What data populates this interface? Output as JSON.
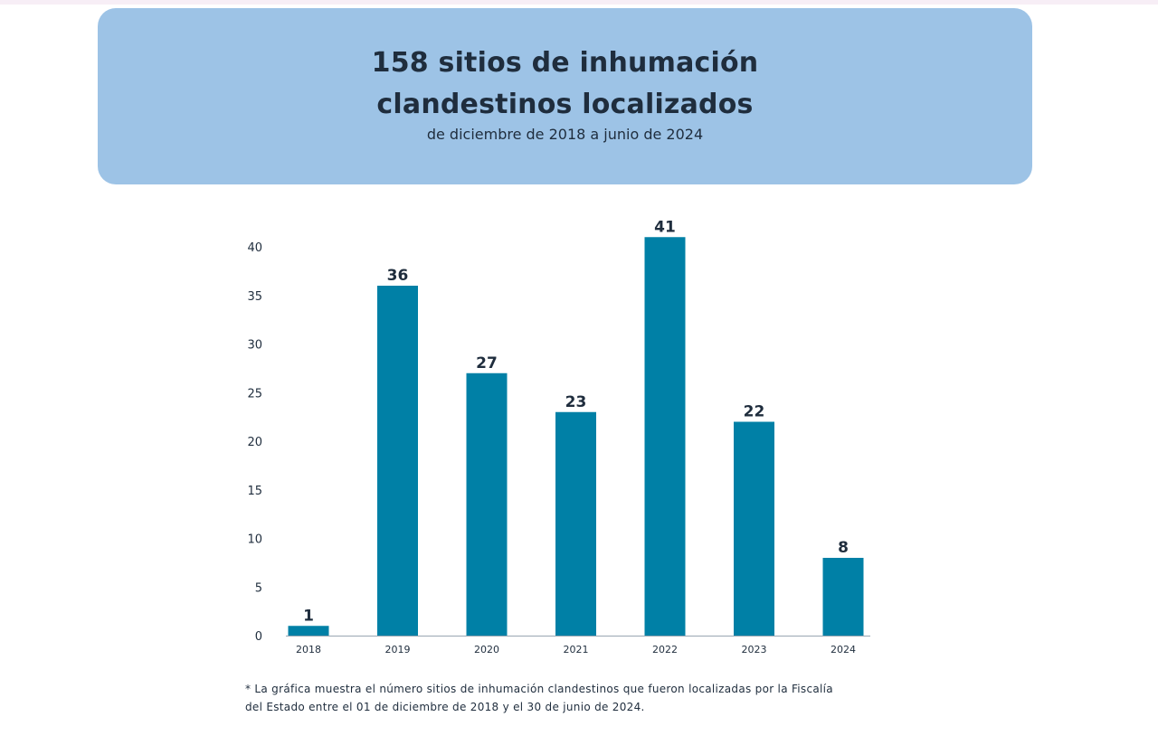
{
  "header": {
    "title_line1": "158 sitios de inhumación",
    "title_line2": "clandestinos localizados",
    "subtitle": "de diciembre de 2018 a junio de 2024"
  },
  "chart_data": {
    "type": "bar",
    "categories": [
      "2018",
      "2019",
      "2020",
      "2021",
      "2022",
      "2023",
      "2024"
    ],
    "values": [
      1,
      36,
      27,
      23,
      41,
      22,
      8
    ],
    "ylim": [
      0,
      40
    ],
    "yticks": [
      0,
      5,
      10,
      15,
      20,
      25,
      30,
      35,
      40
    ],
    "grid": false,
    "bar_color": "#0080a6",
    "axis_color": "#1f2d3d"
  },
  "footnote": {
    "line1": "* La gráfica muestra el número sitios de inhumación clandestinos que fueron localizadas por la Fiscalía",
    "line2": "del Estado entre el 01 de diciembre de 2018 y el 30 de junio de 2024."
  }
}
